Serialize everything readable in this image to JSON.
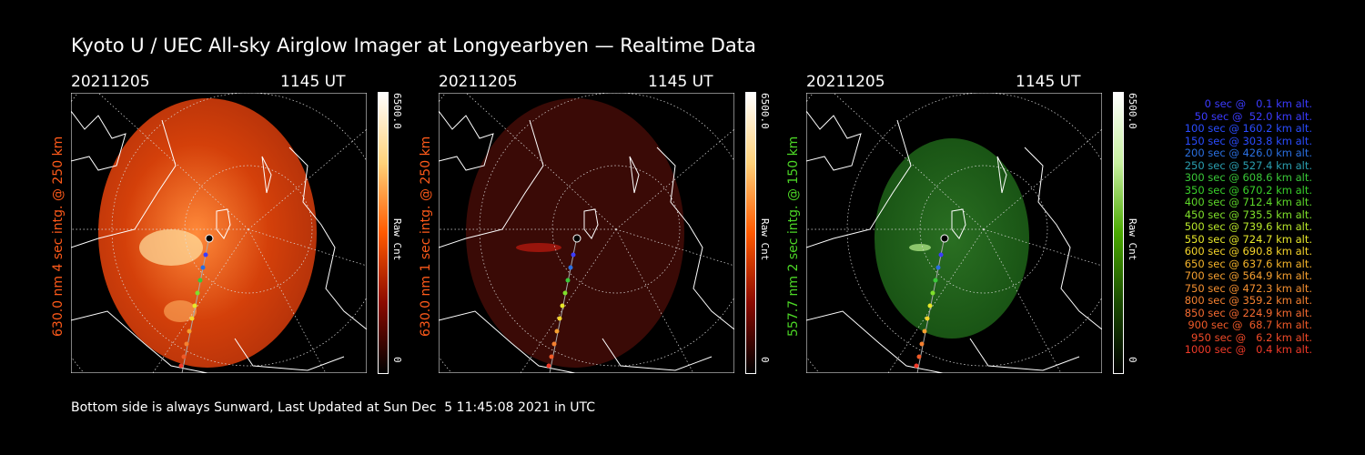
{
  "title": "Kyoto U / UEC All-sky Airglow Imager at Longyearbyen — Realtime Data",
  "panels": [
    {
      "date": "20211205",
      "ut": "1145 UT",
      "ylabel": "630.0 nm 4 sec intg. @ 250 km",
      "ylabel_color": "#ff5a1a",
      "cbar_max": "6500.0",
      "cbar_unit": "Raw Cnt",
      "cbar_min": "0",
      "bar_colors": [
        "#000000",
        "#8b0a00",
        "#ff5a00",
        "#ffd27a",
        "#ffffff"
      ],
      "image_tint": "#d4400a",
      "image_brightness": 1.0
    },
    {
      "date": "20211205",
      "ut": "1145 UT",
      "ylabel": "630.0 nm 1 sec intg. @ 250 km",
      "ylabel_color": "#ff5a1a",
      "cbar_max": "6500.0",
      "cbar_unit": "Raw Cnt",
      "cbar_min": "0",
      "bar_colors": [
        "#000000",
        "#8b0a00",
        "#ff5a00",
        "#ffd27a",
        "#ffffff"
      ],
      "image_tint": "#3a0a06",
      "image_brightness": 0.35
    },
    {
      "date": "20211205",
      "ut": "1145 UT",
      "ylabel": "557.7 nm 2 sec intg. @ 150 km",
      "ylabel_color": "#4cd626",
      "cbar_max": "6500.0",
      "cbar_unit": "Raw Cnt",
      "cbar_min": "0",
      "bar_colors": [
        "#000000",
        "#1a4a00",
        "#4aa800",
        "#c8f0a0",
        "#ffffff"
      ],
      "image_tint": "#164f12",
      "image_brightness": 0.55
    }
  ],
  "footer": "Bottom side is always Sunward, Last Updated at Sun Dec  5 11:45:08 2021 in UTC",
  "legend": [
    {
      "text": "0 sec @   0.1 km alt.",
      "color": "#3b3bff"
    },
    {
      "text": "50 sec @  52.0 km alt.",
      "color": "#3b3bff"
    },
    {
      "text": "100 sec @ 160.2 km alt.",
      "color": "#2a4cff"
    },
    {
      "text": "150 sec @ 303.8 km alt.",
      "color": "#2a4cff"
    },
    {
      "text": "200 sec @ 426.0 km alt.",
      "color": "#2a6fe0"
    },
    {
      "text": "250 sec @ 527.4 km alt.",
      "color": "#2a9fb0"
    },
    {
      "text": "300 sec @ 608.6 km alt.",
      "color": "#39c838"
    },
    {
      "text": "350 sec @ 670.2 km alt.",
      "color": "#39d02a"
    },
    {
      "text": "400 sec @ 712.4 km alt.",
      "color": "#5ed82a"
    },
    {
      "text": "450 sec @ 735.5 km alt.",
      "color": "#7fe02a"
    },
    {
      "text": "500 sec @ 739.6 km alt.",
      "color": "#b8e82a"
    },
    {
      "text": "550 sec @ 724.7 km alt.",
      "color": "#e8e82a"
    },
    {
      "text": "600 sec @ 690.8 km alt.",
      "color": "#f5d42a"
    },
    {
      "text": "650 sec @ 637.6 km alt.",
      "color": "#f5b42a"
    },
    {
      "text": "700 sec @ 564.9 km alt.",
      "color": "#f5a030"
    },
    {
      "text": "750 sec @ 472.3 km alt.",
      "color": "#f59030"
    },
    {
      "text": "800 sec @ 359.2 km alt.",
      "color": "#f58030"
    },
    {
      "text": "850 sec @ 224.9 km alt.",
      "color": "#f56a30"
    },
    {
      "text": "900 sec @  68.7 km alt.",
      "color": "#f05a28"
    },
    {
      "text": "950 sec @   6.2 km alt.",
      "color": "#f04a28"
    },
    {
      "text": "1000 sec @   0.4 km alt.",
      "color": "#f03a28"
    }
  ]
}
